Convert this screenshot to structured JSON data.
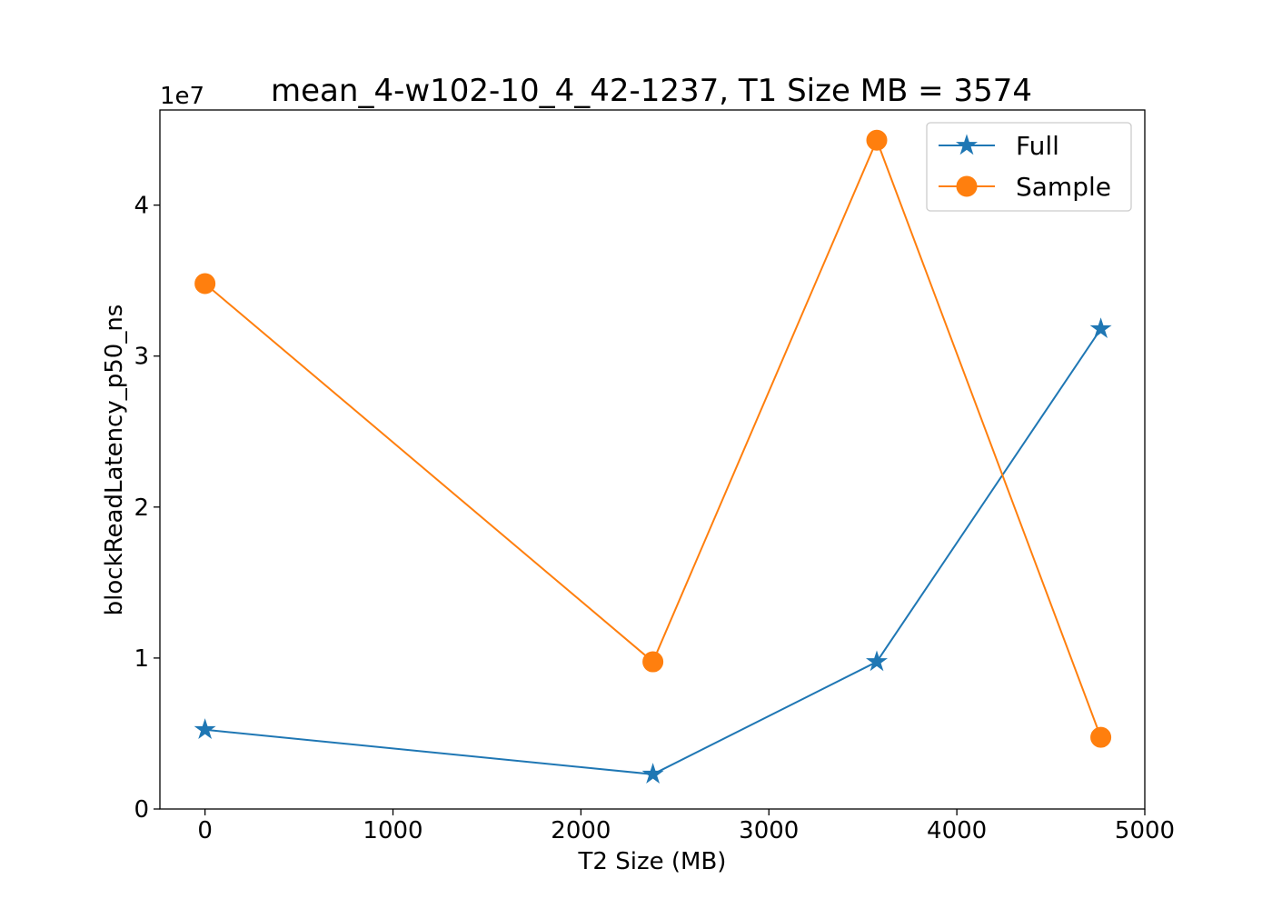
{
  "chart_data": {
    "type": "line",
    "title": "mean_4-w102-10_4_42-1237, T1 Size MB = 3574",
    "xlabel": "T2 Size (MB)",
    "ylabel": "blockReadLatency_p50_ns",
    "y_offset_label": "1e7",
    "x_ticks": [
      0,
      1000,
      2000,
      3000,
      4000,
      5000
    ],
    "x_tick_labels": [
      "0",
      "1000",
      "2000",
      "3000",
      "4000",
      "5000"
    ],
    "y_ticks": [
      0,
      10000000,
      20000000,
      30000000,
      40000000
    ],
    "y_tick_labels": [
      "0",
      "1",
      "2",
      "3",
      "4"
    ],
    "xlim": [
      -240,
      5000
    ],
    "ylim": [
      0,
      46300000
    ],
    "grid": false,
    "legend_position": "upper right",
    "x": [
      0,
      2383,
      3574,
      4766
    ],
    "series": [
      {
        "name": "Full",
        "color": "#1f77b4",
        "marker": "star",
        "values": [
          5250000,
          2300000,
          9750000,
          31800000
        ]
      },
      {
        "name": "Sample",
        "color": "#ff7f0e",
        "marker": "circle",
        "values": [
          34800000,
          9750000,
          44300000,
          4750000
        ]
      }
    ]
  }
}
